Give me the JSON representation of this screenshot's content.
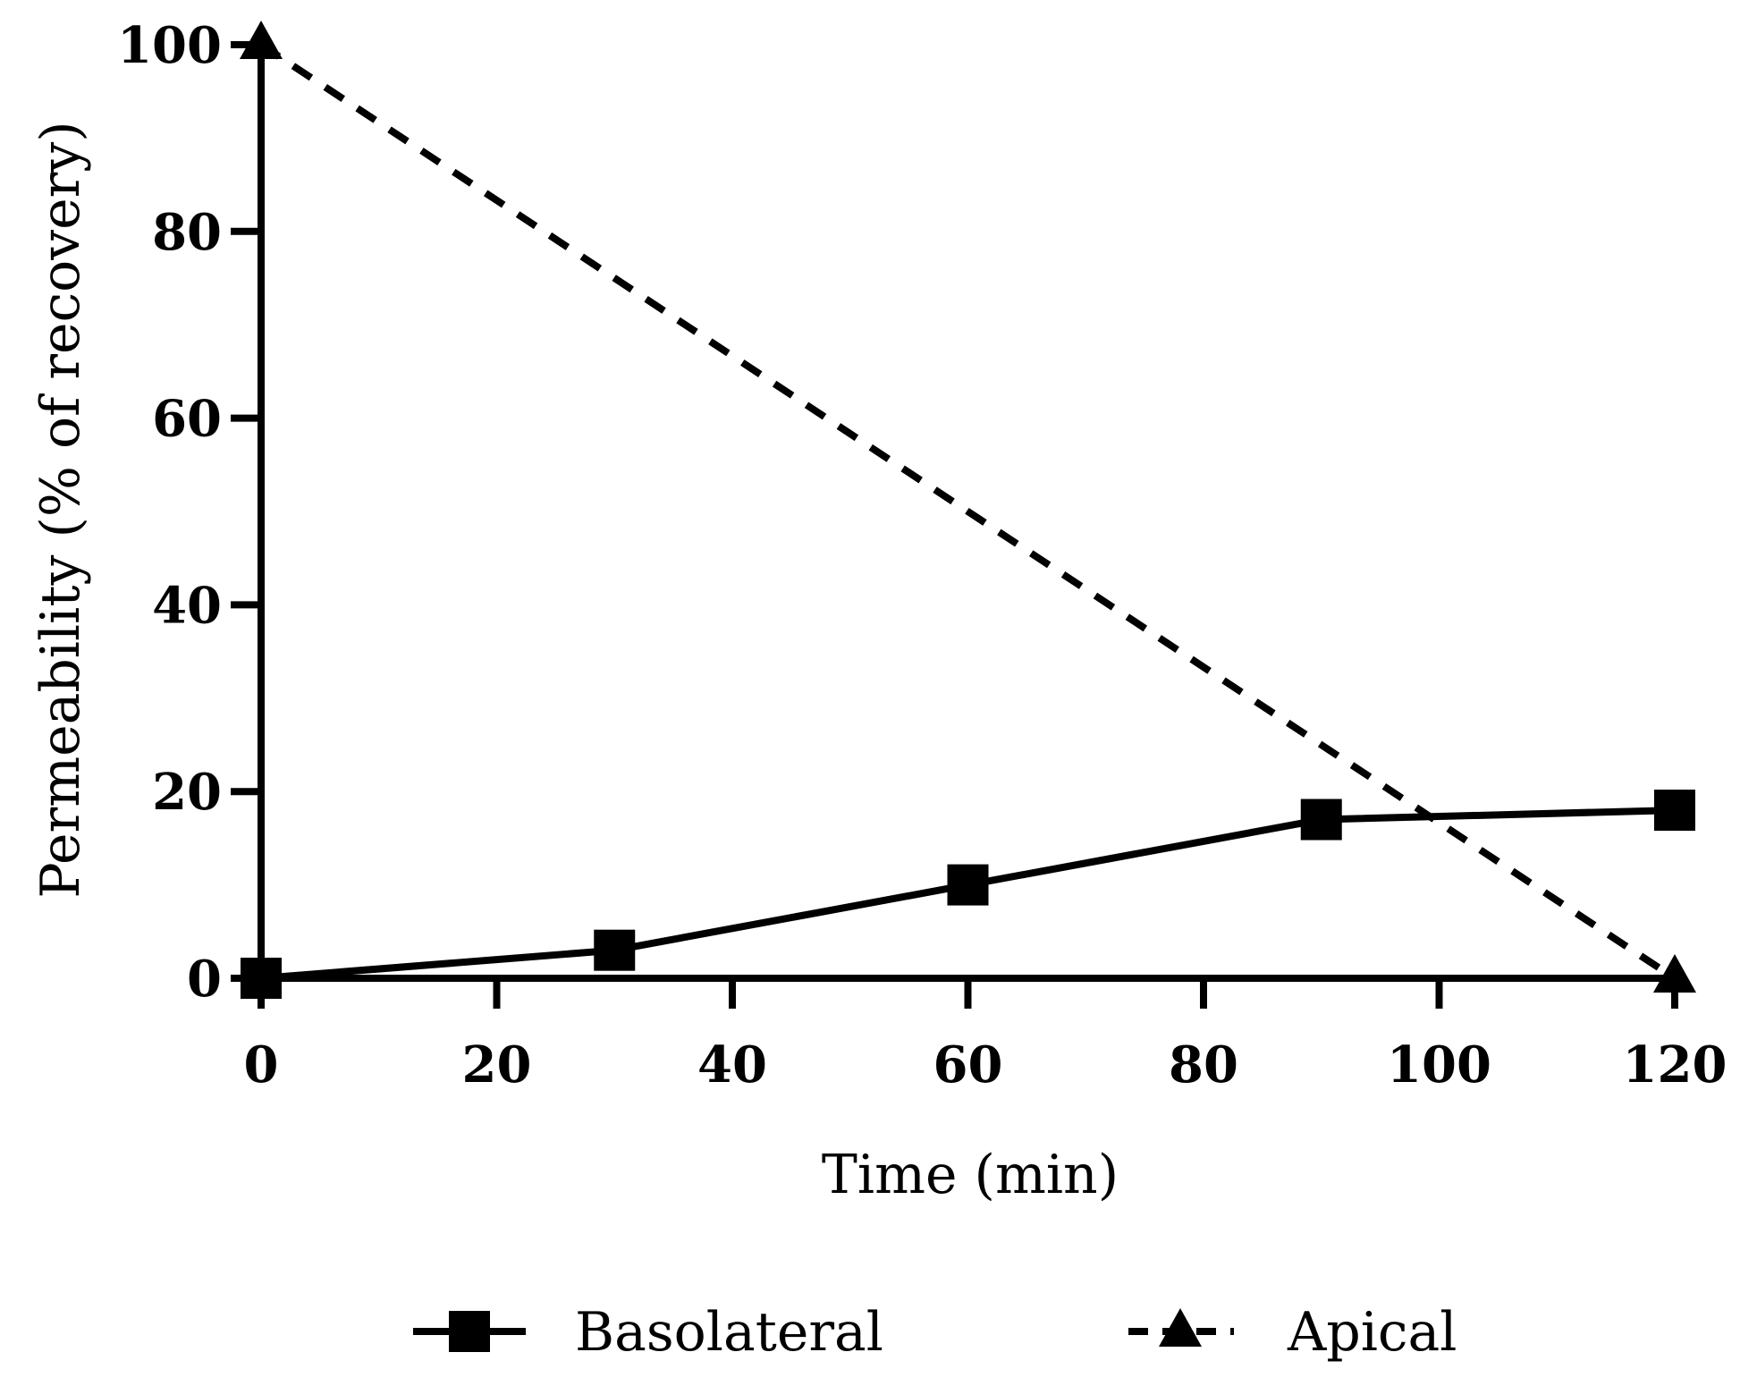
{
  "chart_data": {
    "type": "line",
    "title": "",
    "xlabel": "Time (min)",
    "ylabel": "Permeability (% of recovery)",
    "xlim": [
      0,
      120
    ],
    "ylim": [
      0,
      100
    ],
    "xticks": [
      "0",
      "20",
      "40",
      "60",
      "80",
      "100",
      "120"
    ],
    "yticks": [
      "0",
      "20",
      "40",
      "60",
      "80",
      "100"
    ],
    "grid": false,
    "legend_position": "bottom",
    "series": [
      {
        "name": "Basolateral",
        "marker": "square",
        "linestyle": "solid",
        "color": "#000000",
        "points": [
          [
            0,
            0
          ],
          [
            30,
            3
          ],
          [
            60,
            10
          ],
          [
            90,
            17
          ],
          [
            120,
            18
          ]
        ]
      },
      {
        "name": "Apical",
        "marker": "triangle",
        "linestyle": "dashed",
        "color": "#000000",
        "points": [
          [
            0,
            100
          ],
          [
            120,
            0
          ]
        ]
      }
    ]
  }
}
